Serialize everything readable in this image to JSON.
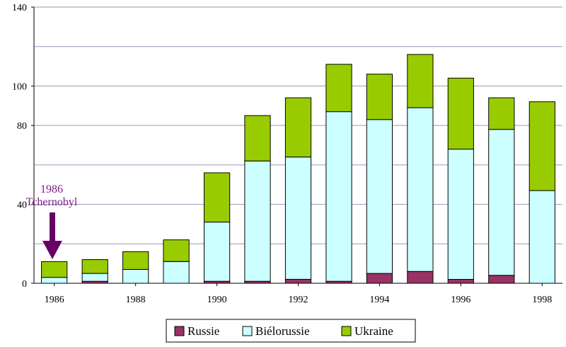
{
  "chart_data": {
    "type": "bar",
    "stacked": true,
    "categories": [
      "1986",
      "1987",
      "1988",
      "1989",
      "1990",
      "1991",
      "1992",
      "1993",
      "1994",
      "1995",
      "1996",
      "1997",
      "1998"
    ],
    "x_tick_labels": [
      "1986",
      "1988",
      "1990",
      "1992",
      "1994",
      "1996",
      "1998"
    ],
    "series": [
      {
        "name": "Russie",
        "color": "#993366",
        "values": [
          0,
          1,
          0,
          0,
          1,
          1,
          2,
          1,
          5,
          6,
          2,
          4,
          0
        ]
      },
      {
        "name": "Biélorussie",
        "color": "#ccffff",
        "values": [
          3,
          4,
          7,
          11,
          30,
          61,
          62,
          86,
          78,
          83,
          66,
          74,
          47
        ]
      },
      {
        "name": "Ukraine",
        "color": "#99cc00",
        "values": [
          8,
          7,
          9,
          11,
          25,
          23,
          30,
          24,
          23,
          27,
          36,
          16,
          45
        ]
      }
    ],
    "ylim": [
      0,
      140
    ],
    "y_ticks": [
      0,
      40,
      80,
      100,
      140
    ],
    "grid": true,
    "legend_position": "bottom-center",
    "annotation": {
      "line1": "1986",
      "line2": "Tchernobyl",
      "points_to": "1986",
      "color": "#7a1a85"
    },
    "title": "",
    "xlabel": "",
    "ylabel": ""
  }
}
